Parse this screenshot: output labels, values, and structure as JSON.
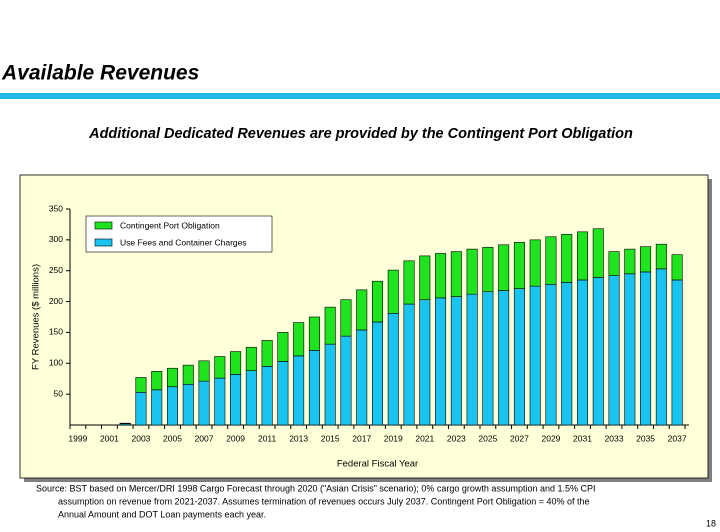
{
  "header": {
    "title": "Available Revenues",
    "subtitle": "Additional Dedicated Revenues are provided by the Contingent Port Obligation"
  },
  "chart_data": {
    "type": "stacked-bar",
    "x_label": "Federal Fiscal Year",
    "y_label": "FY Revenues ($ millions)",
    "categories": [
      "1999",
      null,
      "2001",
      null,
      "2003",
      null,
      "2005",
      null,
      "2007",
      null,
      "2009",
      null,
      "2011",
      null,
      "2013",
      null,
      "2015",
      null,
      "2017",
      null,
      "2019",
      null,
      "2021",
      null,
      "2023",
      null,
      "2025",
      null,
      "2027",
      null,
      "2029",
      null,
      "2031",
      null,
      "2033",
      null,
      "2035",
      null,
      "2037"
    ],
    "series": [
      {
        "name": "Use Fees and Container Charges",
        "color": "#19c4f0",
        "values": [
          0,
          0,
          0,
          2,
          53,
          57,
          62,
          66,
          71,
          76,
          82,
          88,
          95,
          103,
          112,
          121,
          131,
          144,
          154,
          167,
          181,
          196,
          203,
          206,
          208,
          212,
          216,
          218,
          221,
          225,
          228,
          231,
          235,
          239,
          242,
          245,
          248,
          253,
          235
        ]
      },
      {
        "name": "Contingent Port Obligation",
        "color": "#1ee31e",
        "values": [
          0,
          0,
          0,
          1,
          24,
          30,
          30,
          31,
          33,
          35,
          37,
          38,
          42,
          47,
          54,
          54,
          60,
          59,
          65,
          66,
          70,
          70,
          71,
          72,
          73,
          73,
          72,
          74,
          75,
          75,
          77,
          78,
          78,
          79,
          39,
          40,
          41,
          40,
          41
        ]
      }
    ],
    "ylim": [
      0,
      350
    ],
    "yticks": [
      50,
      100,
      150,
      200,
      250,
      300,
      350
    ],
    "legend": "top-left",
    "background": "#ffffd9"
  },
  "footer": {
    "source_lines": [
      "Source: BST based on Mercer/DRI 1998 Cargo Forecast through 2020 (\"Asian Crisis\" scenario); 0% cargo growth assumption and 1.5% CPI",
      "assumption on revenue from 2021-2037. Assumes termination of revenues occurs July 2037. Contingent Port Obligation = 40% of the",
      "Annual Amount and DOT Loan payments each year."
    ],
    "page_number": "18"
  }
}
